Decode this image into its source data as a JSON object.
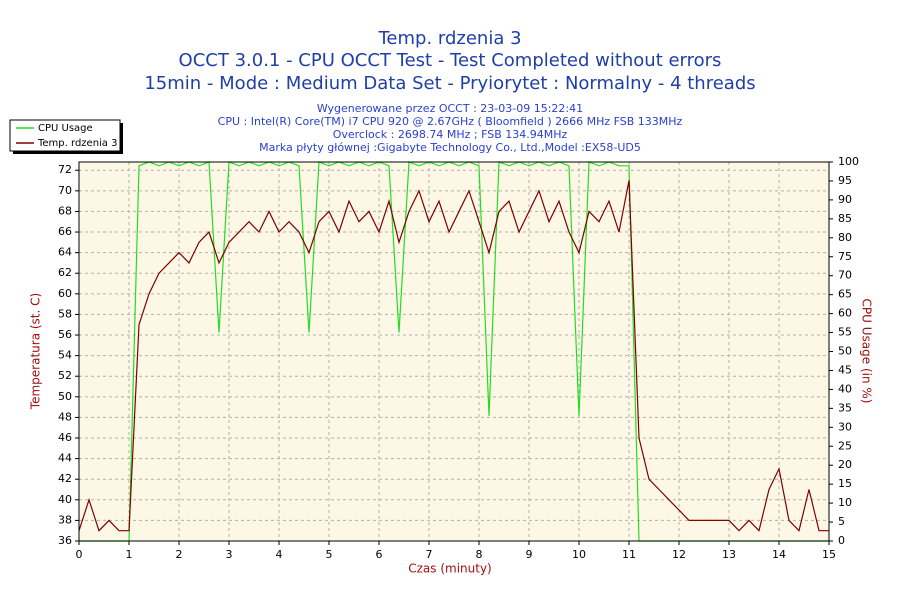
{
  "chart_data": {
    "type": "line",
    "title": "Temp. rdzenia 3",
    "subtitle": [
      "OCCT 3.0.1 - CPU OCCT Test - Test Completed without errors",
      "15min - Mode : Medium Data Set - Pryiorytet : Normalny - 4 threads"
    ],
    "annotations": [
      "Wygenerowane przez OCCT : 23-03-09 15:22:41",
      "CPU : Intel(R) Core(TM) i7 CPU 920 @ 2.67GHz ( Bloomfield ) 2666 MHz FSB 133MHz",
      "Overclock : 2698.74 MHz ; FSB 134.94MHz",
      "Marka płyty głównej :Gigabyte Technology Co., Ltd.,Model :EX58-UD5"
    ],
    "xlabel": "Czas (minuty)",
    "ylabel": "Temperatura (st. C)",
    "y2label": "CPU Usage (in %)",
    "x": [
      0,
      0.2,
      0.4,
      0.6,
      0.8,
      1.0,
      1.2,
      1.4,
      1.6,
      1.8,
      2.0,
      2.2,
      2.4,
      2.6,
      2.8,
      3.0,
      3.2,
      3.4,
      3.6,
      3.8,
      4.0,
      4.2,
      4.4,
      4.6,
      4.8,
      5.0,
      5.2,
      5.4,
      5.6,
      5.8,
      6.0,
      6.2,
      6.4,
      6.6,
      6.8,
      7.0,
      7.2,
      7.4,
      7.6,
      7.8,
      8.0,
      8.2,
      8.4,
      8.6,
      8.8,
      9.0,
      9.2,
      9.4,
      9.6,
      9.8,
      10.0,
      10.2,
      10.4,
      10.6,
      10.8,
      11.0,
      11.2,
      11.4,
      11.6,
      11.8,
      12.0,
      12.2,
      12.4,
      12.6,
      12.8,
      13.0,
      13.2,
      13.4,
      13.6,
      13.8,
      14.0,
      14.2,
      14.4,
      14.6,
      14.8,
      15.0
    ],
    "series": [
      {
        "name": "CPU Usage",
        "color": "#22dd22",
        "axis": "y2",
        "values": [
          0,
          0,
          0,
          0,
          0,
          0,
          99,
          100,
          99,
          100,
          99,
          100,
          99,
          100,
          55,
          100,
          99,
          100,
          99,
          100,
          99,
          100,
          99,
          55,
          100,
          99,
          100,
          99,
          100,
          99,
          100,
          99,
          55,
          100,
          99,
          100,
          99,
          100,
          99,
          100,
          99,
          33,
          100,
          99,
          100,
          99,
          100,
          99,
          100,
          99,
          33,
          100,
          99,
          100,
          99,
          99,
          0,
          0,
          0,
          0,
          0,
          0,
          0,
          0,
          0,
          0,
          0,
          0,
          0,
          0,
          0,
          0,
          0,
          0,
          0,
          0
        ]
      },
      {
        "name": "Temp. rdzenia 3",
        "color": "#800000",
        "values": [
          37,
          40,
          37,
          38,
          37,
          37,
          57,
          60,
          62,
          63,
          64,
          63,
          65,
          66,
          63,
          65,
          66,
          67,
          66,
          68,
          66,
          67,
          66,
          64,
          67,
          68,
          66,
          69,
          67,
          68,
          66,
          69,
          65,
          68,
          70,
          67,
          69,
          66,
          68,
          70,
          67,
          64,
          68,
          69,
          66,
          68,
          70,
          67,
          69,
          66,
          64,
          68,
          67,
          69,
          66,
          71,
          46,
          42,
          41,
          40,
          39,
          38,
          38,
          38,
          38,
          38,
          37,
          38,
          37,
          41,
          43,
          38,
          37,
          41,
          37,
          37
        ]
      }
    ],
    "xlim": [
      0,
      15
    ],
    "xticks": [
      0,
      1,
      2,
      3,
      4,
      5,
      6,
      7,
      8,
      9,
      10,
      11,
      12,
      13,
      14,
      15
    ],
    "ylim": [
      36,
      72.8
    ],
    "yticks": [
      36,
      38,
      40,
      42,
      44,
      46,
      48,
      50,
      52,
      54,
      56,
      58,
      60,
      62,
      64,
      66,
      68,
      70,
      72
    ],
    "y2lim": [
      0,
      100
    ],
    "y2ticks": [
      0,
      5,
      10,
      15,
      20,
      25,
      30,
      35,
      40,
      45,
      50,
      55,
      60,
      65,
      70,
      75,
      80,
      85,
      90,
      95,
      100
    ],
    "grid": true,
    "legend": "top-left"
  }
}
